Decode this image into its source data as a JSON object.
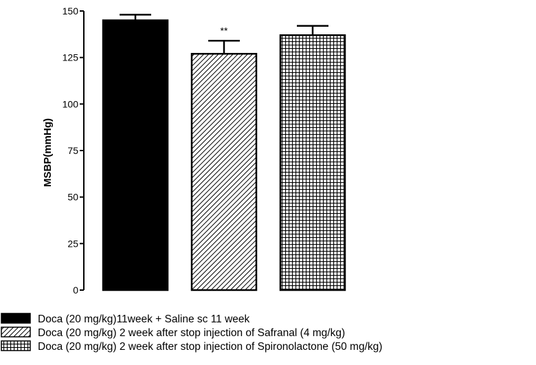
{
  "chart_data": {
    "type": "bar",
    "title": "",
    "xlabel": "",
    "ylabel": "MSBP(mmHg)",
    "ylim": [
      0,
      150
    ],
    "yticks": [
      0,
      25,
      50,
      75,
      100,
      125,
      150
    ],
    "grid": false,
    "legend_position": "bottom-left",
    "bars": [
      {
        "label": "Doca (20 mg/kg)11week + Saline sc 11 week",
        "value": 145,
        "error": 3,
        "pattern": "solid",
        "annotation": ""
      },
      {
        "label": "Doca (20 mg/kg) 2 week after stop injection of Safranal (4 mg/kg)",
        "value": 127,
        "error": 7,
        "pattern": "diagonal-hatch",
        "annotation": "**"
      },
      {
        "label": "Doca (20 mg/kg) 2 week after stop injection of Spironolactone (50 mg/kg)",
        "value": 137,
        "error": 5,
        "pattern": "grid-hatch",
        "annotation": ""
      }
    ]
  },
  "colors": {
    "bar_fill": "#000000",
    "axis": "#000000",
    "background": "#ffffff"
  }
}
